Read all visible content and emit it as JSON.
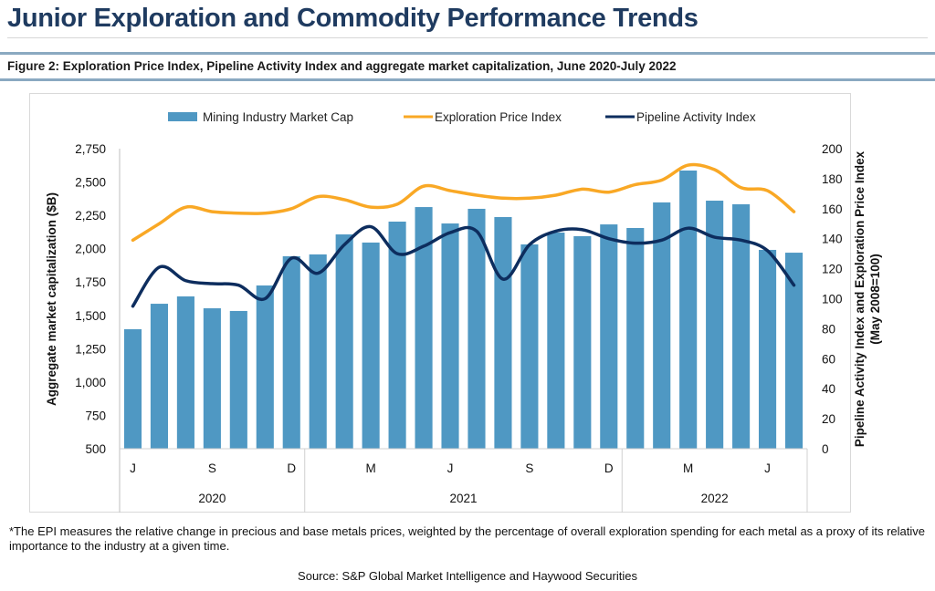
{
  "header": {
    "title": "Junior Exploration and Commodity Performance Trends",
    "figure_caption": "Figure 2: Exploration Price Index, Pipeline Activity Index and aggregate market capitalization, June 2020-July 2022"
  },
  "footer": {
    "footnote": "*The EPI measures the relative change in precious and base metals prices, weighted by the percentage of overall exploration spending for each metal as a proxy of its relative importance to the industry at a given time.",
    "source": "Source: S&P Global Market Intelligence and Haywood Securities"
  },
  "colors": {
    "bars": "#4f98c3",
    "epi": "#f9a825",
    "pai": "#0d2d5e"
  },
  "chart_data": {
    "type": "bar",
    "title": "",
    "categories": [
      "Jun 2020",
      "Jul 2020",
      "Aug 2020",
      "Sep 2020",
      "Oct 2020",
      "Nov 2020",
      "Dec 2020",
      "Jan 2021",
      "Feb 2021",
      "Mar 2021",
      "Apr 2021",
      "May 2021",
      "Jun 2021",
      "Jul 2021",
      "Aug 2021",
      "Sep 2021",
      "Oct 2021",
      "Nov 2021",
      "Dec 2021",
      "Jan 2022",
      "Feb 2022",
      "Mar 2022",
      "Apr 2022",
      "May 2022",
      "Jun 2022",
      "Jul 2022"
    ],
    "x_tick_labels": [
      "J",
      "",
      "",
      "S",
      "",
      "",
      "D",
      "",
      "",
      "M",
      "",
      "",
      "J",
      "",
      "",
      "S",
      "",
      "",
      "D",
      "",
      "",
      "M",
      "",
      "",
      "J",
      ""
    ],
    "year_groups": [
      {
        "label": "2020",
        "start": 0,
        "end": 6
      },
      {
        "label": "2021",
        "start": 7,
        "end": 18
      },
      {
        "label": "2022",
        "start": 19,
        "end": 25
      }
    ],
    "ylabel": "Aggregate market capitalization ($B)",
    "ylim": [
      500,
      2750
    ],
    "yticks": [
      "500",
      "750",
      "1,000",
      "1,250",
      "1,500",
      "1,750",
      "2,000",
      "2,250",
      "2,500",
      "2,750"
    ],
    "y2label_line1": "Pipeline Activity Index and Exploration Price Index",
    "y2label_line2": "(May 2008=100)",
    "y2lim": [
      0,
      200
    ],
    "y2ticks": [
      "0",
      "20",
      "40",
      "60",
      "80",
      "100",
      "120",
      "140",
      "160",
      "180",
      "200"
    ],
    "legend_position": "top",
    "grid": false,
    "series": [
      {
        "name": "Mining Industry Market Cap",
        "type": "bar",
        "axis": "left",
        "values": [
          1396,
          1587,
          1642,
          1553,
          1533,
          1724,
          1943,
          1957,
          2107,
          2046,
          2203,
          2312,
          2189,
          2299,
          2237,
          2032,
          2121,
          2094,
          2182,
          2155,
          2347,
          2586,
          2360,
          2333,
          1991,
          1970
        ]
      },
      {
        "name": "Exploration Price Index",
        "type": "line",
        "axis": "right",
        "values": [
          139,
          150,
          161,
          158,
          157,
          157,
          160,
          168,
          166,
          161,
          163,
          175,
          172,
          169,
          167,
          167,
          169,
          173,
          171,
          176,
          179,
          189,
          186,
          174,
          172,
          158
        ]
      },
      {
        "name": "Pipeline Activity Index",
        "type": "line",
        "axis": "right",
        "values": [
          95,
          121,
          112,
          110,
          109,
          100,
          127,
          117,
          136,
          148,
          130,
          135,
          144,
          145,
          113,
          136,
          145,
          146,
          140,
          137,
          139,
          147,
          141,
          139,
          132,
          109
        ]
      }
    ]
  }
}
